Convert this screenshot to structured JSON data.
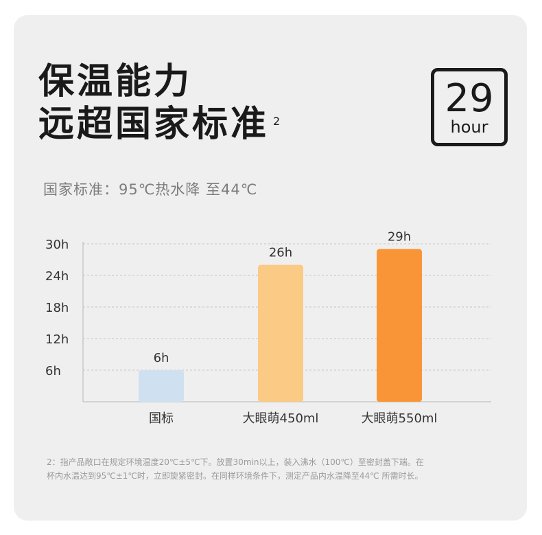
{
  "title": {
    "line1": "保温能力",
    "line2": "远超国家标准",
    "note_mark": "2"
  },
  "badge": {
    "value": "29",
    "unit": "hour"
  },
  "standard_text": "国家标准：95℃热水降 至44℃",
  "chart_data": {
    "type": "bar",
    "categories": [
      "国标",
      "大眼萌450ml",
      "大眼萌550ml"
    ],
    "values": [
      6,
      26,
      29
    ],
    "value_labels": [
      "6h",
      "26h",
      "29h"
    ],
    "colors": [
      "#cfe1f1",
      "#fbca84",
      "#fa9537"
    ],
    "y_ticks": [
      6,
      12,
      18,
      24,
      30
    ],
    "y_tick_labels": [
      "6h",
      "12h",
      "18h",
      "24h",
      "30h"
    ],
    "ylim": [
      0,
      30
    ],
    "grid": true,
    "title": "",
    "xlabel": "",
    "ylabel": ""
  },
  "footnote": {
    "line1": "2：指产品敞口在规定环境温度20℃±5℃下。放置30min以上，装入沸水（100℃）至密封盖下端。在",
    "line2": "杯内水温达到95℃±1℃时，立即旋紧密封。在同样环境条件下，测定产品内水温降至44℃ 所需时长。"
  }
}
